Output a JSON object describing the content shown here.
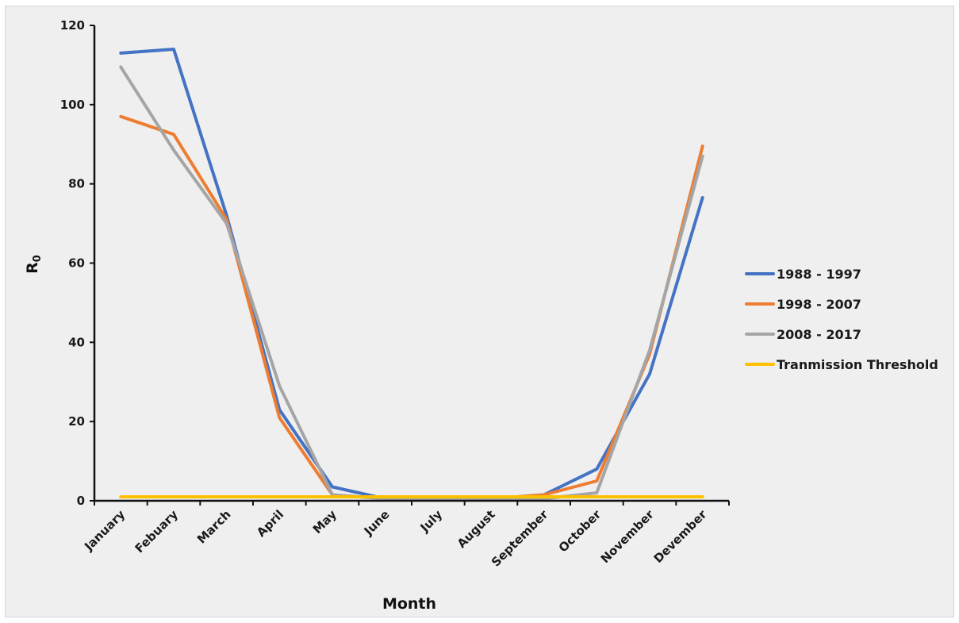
{
  "chart_data": {
    "type": "line",
    "title": "",
    "xlabel": "Month",
    "ylabel": "R0",
    "ylabel_main": "R",
    "ylabel_sub": "0",
    "ylim": [
      0,
      120
    ],
    "yticks": [
      0,
      20,
      40,
      60,
      80,
      100,
      120
    ],
    "grid": false,
    "legend_position": "right",
    "categories": [
      "January",
      "Febuary",
      "March",
      "April",
      "May",
      "June",
      "July",
      "August",
      "September",
      "October",
      "November",
      "Devember"
    ],
    "series": [
      {
        "name": "1988 - 1997",
        "color": "#4472c4",
        "values": [
          113,
          114,
          72,
          23,
          3.5,
          0.5,
          0.5,
          0.5,
          1.5,
          8,
          32,
          76.5
        ]
      },
      {
        "name": "1998 - 2007",
        "color": "#ed7d31",
        "values": [
          97,
          92.5,
          71,
          21,
          1.5,
          0.5,
          0.5,
          0.5,
          1.5,
          5,
          37,
          89.5
        ]
      },
      {
        "name": "2008 - 2017",
        "color": "#a5a5a5",
        "values": [
          109.5,
          88.5,
          70,
          29,
          1.5,
          0.5,
          0.5,
          0.5,
          0.5,
          2,
          38,
          87
        ]
      },
      {
        "name": "Tranmission Threshold",
        "color": "#ffc000",
        "values": [
          1,
          1,
          1,
          1,
          1,
          1,
          1,
          1,
          1,
          1,
          1,
          1
        ]
      }
    ]
  }
}
